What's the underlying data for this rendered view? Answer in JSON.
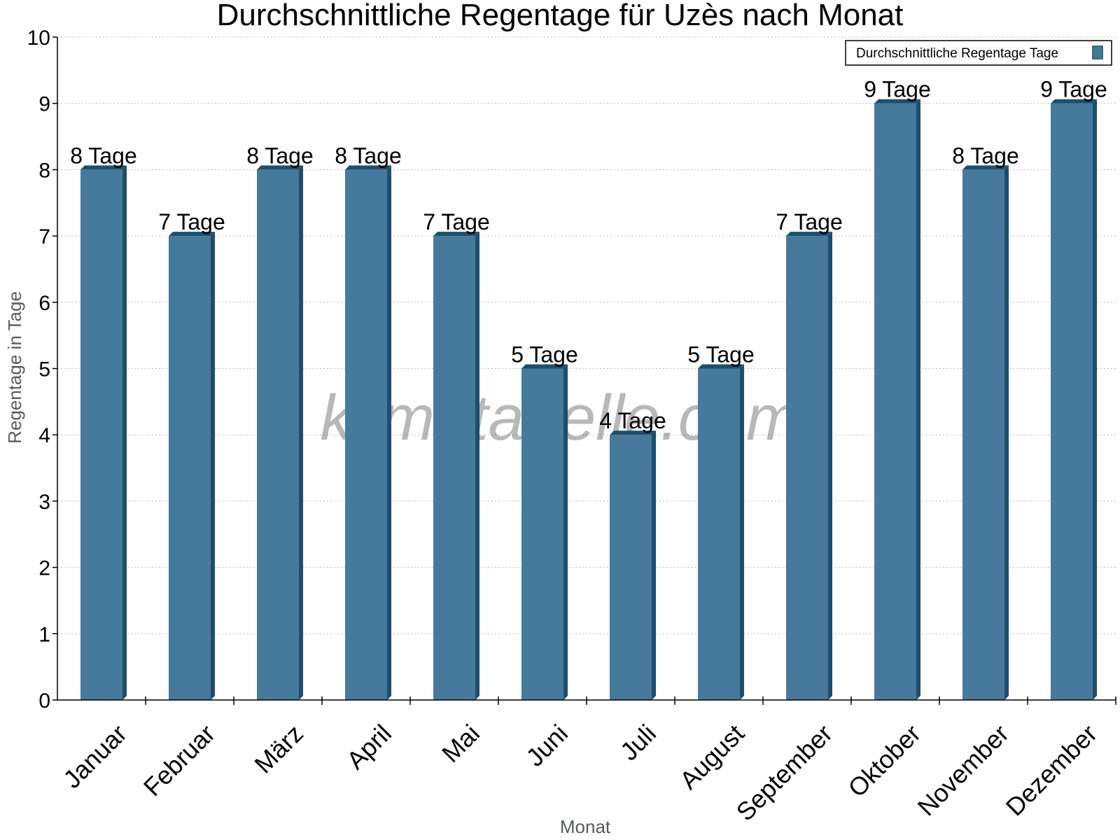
{
  "chart_data": {
    "type": "bar",
    "title": "Durchschnittliche Regentage für Uzès nach Monat",
    "xlabel": "Monat",
    "ylabel": "Regentage in Tage",
    "ylim": [
      0,
      10
    ],
    "yticks": [
      "0",
      "1",
      "2",
      "3",
      "4",
      "5",
      "6",
      "7",
      "8",
      "9",
      "10"
    ],
    "grid": true,
    "legend_position": "top-right",
    "categories": [
      "Januar",
      "Februar",
      "März",
      "April",
      "Mai",
      "Juni",
      "Juli",
      "August",
      "September",
      "Oktober",
      "November",
      "Dezember"
    ],
    "series": [
      {
        "name": "Durchschnittliche Regentage Tage",
        "values": [
          8,
          7,
          8,
          8,
          7,
          5,
          4,
          5,
          7,
          9,
          8,
          9
        ],
        "labels": [
          "8 Tage",
          "7 Tage",
          "8 Tage",
          "8 Tage",
          "7 Tage",
          "5 Tage",
          "4 Tage",
          "5 Tage",
          "7 Tage",
          "9 Tage",
          "8 Tage",
          "9 Tage"
        ]
      }
    ],
    "watermark": "klimatabelle.com",
    "colors": {
      "bar": "#467a9c",
      "bar_side": "#1d4e6d",
      "bar_top": "#1d4e6d",
      "grid": "#bbbbbb",
      "axis": "#000000"
    }
  }
}
